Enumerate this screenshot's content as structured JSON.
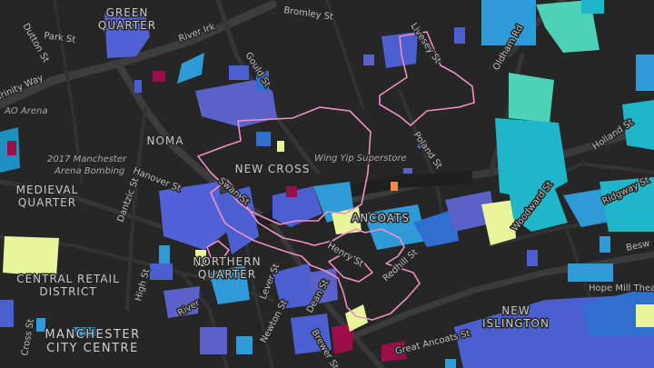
{
  "map": {
    "theme": "dark",
    "background_color": "#262626",
    "road_color": "#3a3a3a",
    "outline_color": "#f08fc6",
    "building_palette": [
      "#4b5fd0",
      "#5a62c8",
      "#2f9bd6",
      "#1fb6c9",
      "#4fd1b8",
      "#e9f59a",
      "#9a0f4a",
      "#7a57c9"
    ],
    "area_labels": [
      {
        "id": "green-quarter",
        "lines": [
          "GREEN",
          "QUARTER"
        ]
      },
      {
        "id": "noma",
        "lines": [
          "NOMA"
        ]
      },
      {
        "id": "new-cross",
        "lines": [
          "NEW CROSS"
        ]
      },
      {
        "id": "medieval-quarter",
        "lines": [
          "MEDIEVAL",
          "QUARTER"
        ]
      },
      {
        "id": "ancoats",
        "lines": [
          "ANCOATS"
        ]
      },
      {
        "id": "northern-quarter",
        "lines": [
          "NORTHERN",
          "QUARTER"
        ]
      },
      {
        "id": "central-retail-district",
        "lines": [
          "CENTRAL RETAIL",
          "DISTRICT"
        ]
      },
      {
        "id": "manchester-city-centre",
        "lines": [
          "MANCHESTER",
          "CITY CENTRE"
        ]
      },
      {
        "id": "new-islington",
        "lines": [
          "NEW",
          "ISLINGTON"
        ]
      }
    ],
    "street_labels": {
      "bromley": "Bromley St",
      "dutton": "Dutton St",
      "park": "Park St",
      "river_irk": "River Irk",
      "gould": "Gould St",
      "livesey": "Livesey St",
      "oldham": "Oldham Rd",
      "trinity": "Trinity Way",
      "hanover": "Hanover St",
      "dantzic": "Dantzic St",
      "swan": "Swan St",
      "poland": "Poland St",
      "holland": "Holland St",
      "ridgway": "Ridgway St",
      "woodward": "Woodward St",
      "beswick": "Besw",
      "henry": "Henry St",
      "redhill": "Redhill St",
      "high": "High St",
      "lever": "Lever St",
      "newton": "Newton St",
      "dean": "Dean St",
      "brewer": "Brewer St",
      "great_ancoats": "Great Ancoats St",
      "hope_mill": "Hope Mill Theatre",
      "cross": "Cross St"
    },
    "poi_labels": {
      "ao_arena": "AO Arena",
      "bombing_line1": "2017 Manchester",
      "bombing_line2": "Arena Bombing",
      "wing_yip": "Wing Yip Superstore"
    }
  }
}
